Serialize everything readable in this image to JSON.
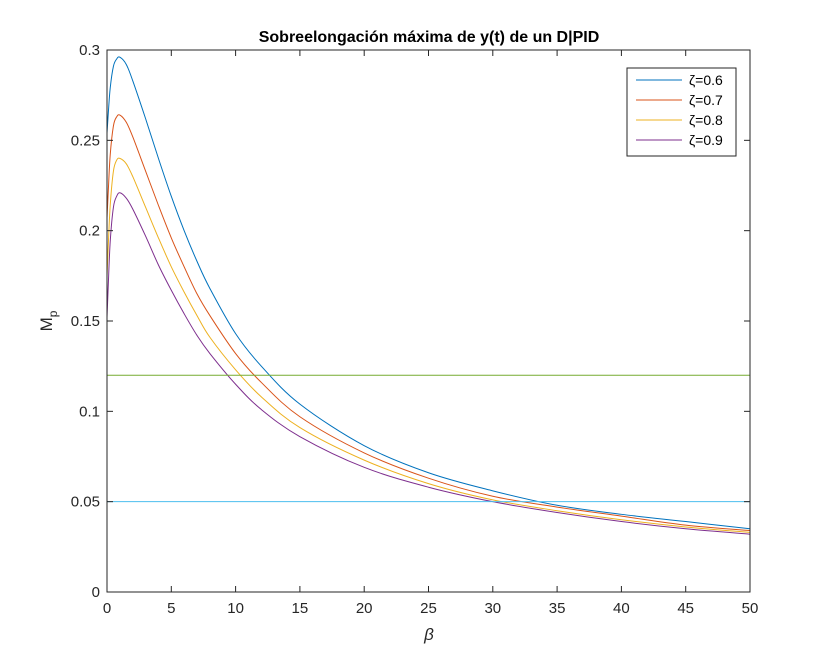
{
  "chart_data": {
    "type": "line",
    "title": "Sobreelongación máxima de y(t) de un D|PID",
    "xlabel": "β",
    "ylabel": "M",
    "ylabel_subscript": "p",
    "xlim": [
      0,
      50
    ],
    "ylim": [
      0,
      0.3
    ],
    "grid": false,
    "legend_position": "top-right",
    "x_ticks": [
      0,
      5,
      10,
      15,
      20,
      25,
      30,
      35,
      40,
      45,
      50
    ],
    "x_tick_labels": [
      "0",
      "5",
      "10",
      "15",
      "20",
      "25",
      "30",
      "35",
      "40",
      "45",
      "50"
    ],
    "y_ticks": [
      0,
      0.05,
      0.1,
      0.15,
      0.2,
      0.25,
      0.3
    ],
    "y_tick_labels": [
      "0",
      "0.05",
      "0.1",
      "0.15",
      "0.2",
      "0.25",
      "0.3"
    ],
    "series": [
      {
        "name": "ζ=0.6",
        "color": "#0072bd",
        "x": [
          0,
          0.1,
          0.25,
          0.5,
          0.75,
          1,
          1.5,
          2,
          3,
          4,
          5,
          6,
          7,
          8,
          10,
          12,
          15,
          20,
          25,
          30,
          35,
          40,
          45,
          50
        ],
        "y": [
          0.254,
          0.265,
          0.279,
          0.291,
          0.295,
          0.296,
          0.292,
          0.283,
          0.262,
          0.24,
          0.219,
          0.2,
          0.183,
          0.168,
          0.143,
          0.125,
          0.104,
          0.081,
          0.066,
          0.056,
          0.048,
          0.043,
          0.039,
          0.035
        ]
      },
      {
        "name": "ζ=0.7",
        "color": "#d95319",
        "x": [
          0,
          0.1,
          0.25,
          0.5,
          0.75,
          1,
          1.5,
          2,
          3,
          4,
          5,
          6,
          7,
          8,
          10,
          12,
          15,
          20,
          25,
          30,
          35,
          40,
          45,
          50
        ],
        "y": [
          0.207,
          0.222,
          0.242,
          0.258,
          0.263,
          0.264,
          0.26,
          0.252,
          0.233,
          0.214,
          0.196,
          0.18,
          0.165,
          0.153,
          0.132,
          0.116,
          0.097,
          0.077,
          0.063,
          0.053,
          0.047,
          0.042,
          0.037,
          0.034
        ]
      },
      {
        "name": "ζ=0.8",
        "color": "#edb120",
        "x": [
          0,
          0.1,
          0.25,
          0.5,
          0.75,
          1,
          1.5,
          2,
          3,
          4,
          5,
          6,
          7,
          8,
          10,
          12,
          15,
          20,
          25,
          30,
          35,
          40,
          45,
          50
        ],
        "y": [
          0.175,
          0.192,
          0.214,
          0.233,
          0.239,
          0.24,
          0.237,
          0.23,
          0.213,
          0.196,
          0.18,
          0.166,
          0.153,
          0.141,
          0.123,
          0.108,
          0.091,
          0.073,
          0.06,
          0.051,
          0.045,
          0.04,
          0.036,
          0.033
        ]
      },
      {
        "name": "ζ=0.9",
        "color": "#7e2f8e",
        "x": [
          0,
          0.1,
          0.25,
          0.5,
          0.75,
          1,
          1.5,
          2,
          3,
          4,
          5,
          6,
          7,
          8,
          10,
          12,
          15,
          20,
          25,
          30,
          35,
          40,
          45,
          50
        ],
        "y": [
          0.152,
          0.17,
          0.194,
          0.213,
          0.219,
          0.221,
          0.218,
          0.212,
          0.197,
          0.181,
          0.167,
          0.154,
          0.142,
          0.132,
          0.115,
          0.101,
          0.086,
          0.069,
          0.058,
          0.05,
          0.044,
          0.039,
          0.035,
          0.032
        ]
      },
      {
        "name": "",
        "color": "#77ac30",
        "show_in_legend": false,
        "x": [
          0,
          50
        ],
        "y": [
          0.12,
          0.12
        ]
      },
      {
        "name": "",
        "color": "#4dbeee",
        "show_in_legend": false,
        "x": [
          0,
          50
        ],
        "y": [
          0.05,
          0.05
        ]
      }
    ]
  }
}
